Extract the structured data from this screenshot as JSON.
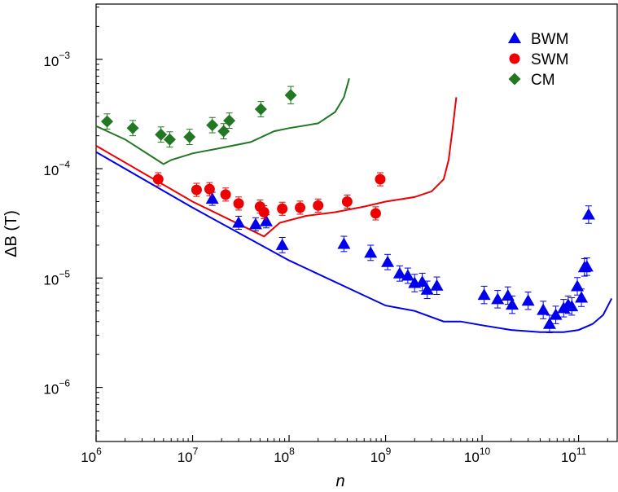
{
  "chart_data": {
    "type": "scatter",
    "xlabel": "n",
    "ylabel": "ΔB (T)",
    "xscale": "log",
    "yscale": "log",
    "xlim": [
      1000000,
      251188643150
    ],
    "ylim": [
      3.2e-07,
      0.0032
    ],
    "x_ticks": [
      {
        "value": 1000000,
        "base": "10",
        "exp": "6"
      },
      {
        "value": 10000000,
        "base": "10",
        "exp": "7"
      },
      {
        "value": 100000000,
        "base": "10",
        "exp": "8"
      },
      {
        "value": 1000000000,
        "base": "10",
        "exp": "9"
      },
      {
        "value": 10000000000,
        "base": "10",
        "exp": "10"
      },
      {
        "value": 100000000000,
        "base": "10",
        "exp": "11"
      }
    ],
    "y_ticks": [
      {
        "value": 1e-06,
        "base": "10",
        "exp": "−6"
      },
      {
        "value": 1e-05,
        "base": "10",
        "exp": "−5"
      },
      {
        "value": 0.0001,
        "base": "10",
        "exp": "−4"
      },
      {
        "value": 0.001,
        "base": "10",
        "exp": "−3"
      }
    ],
    "legend_position": "top-right",
    "grid": false,
    "series": [
      {
        "name": "BWM",
        "marker": "triangle",
        "color": "#0000ee",
        "points": [
          [
            16000000.0,
            5.3e-05,
            0.06
          ],
          [
            30000000.0,
            3.2e-05,
            0.06
          ],
          [
            45000000.0,
            3.1e-05,
            0.06
          ],
          [
            58000000.0,
            3.3e-05,
            0.06
          ],
          [
            85000000.0,
            2e-05,
            0.07
          ],
          [
            370000000.0,
            2.05e-05,
            0.07
          ],
          [
            700000000.0,
            1.7e-05,
            0.07
          ],
          [
            1050000000.0,
            1.4e-05,
            0.07
          ],
          [
            1400000000.0,
            1.1e-05,
            0.07
          ],
          [
            1700000000.0,
            1.05e-05,
            0.07
          ],
          [
            2000000000.0,
            9e-06,
            0.08
          ],
          [
            2400000000.0,
            9.2e-06,
            0.08
          ],
          [
            2700000000.0,
            7.8e-06,
            0.08
          ],
          [
            3400000000.0,
            8.5e-06,
            0.08
          ],
          [
            10500000000.0,
            7e-06,
            0.08
          ],
          [
            14500000000.0,
            6.4e-06,
            0.08
          ],
          [
            18500000000.0,
            6.9e-06,
            0.08
          ],
          [
            20500000000.0,
            5.7e-06,
            0.08
          ],
          [
            30000000000.0,
            6.2e-06,
            0.08
          ],
          [
            43000000000.0,
            5.1e-06,
            0.08
          ],
          [
            50000000000.0,
            3.8e-06,
            0.08
          ],
          [
            58000000000.0,
            4.6e-06,
            0.08
          ],
          [
            70000000000.0,
            5.3e-06,
            0.08
          ],
          [
            78000000000.0,
            5.7e-06,
            0.08
          ],
          [
            85000000000.0,
            5.5e-06,
            0.08
          ],
          [
            97000000000.0,
            8.4e-06,
            0.08
          ],
          [
            107000000000.0,
            6.6e-06,
            0.08
          ],
          [
            115000000000.0,
            1.25e-05,
            0.08
          ],
          [
            122000000000.0,
            1.27e-05,
            0.08
          ],
          [
            127000000000.0,
            3.8e-05,
            0.08
          ]
        ],
        "curve": [
          [
            1000000.0,
            0.000142
          ],
          [
            10000000.0,
            4.4e-05
          ],
          [
            100000000.0,
            1.45e-05
          ],
          [
            1000000000.0,
            5.6e-06
          ],
          [
            2000000000.0,
            5e-06
          ],
          [
            4000000000.0,
            4e-06
          ],
          [
            6000000000.0,
            4e-06
          ],
          [
            10000000000.0,
            3.7e-06
          ],
          [
            20000000000.0,
            3.35e-06
          ],
          [
            40000000000.0,
            3.2e-06
          ],
          [
            70000000000.0,
            3.2e-06
          ],
          [
            100000000000.0,
            3.35e-06
          ],
          [
            140000000000.0,
            3.8e-06
          ],
          [
            180000000000.0,
            4.6e-06
          ],
          [
            220000000000.0,
            6.5e-06
          ]
        ]
      },
      {
        "name": "SWM",
        "marker": "circle",
        "color": "#ee0000",
        "points": [
          [
            4400000.0,
            8e-05,
            0.06
          ],
          [
            11000000.0,
            6.4e-05,
            0.06
          ],
          [
            15000000.0,
            6.5e-05,
            0.06
          ],
          [
            22000000.0,
            5.8e-05,
            0.06
          ],
          [
            30000000.0,
            4.8e-05,
            0.06
          ],
          [
            50000000.0,
            4.5e-05,
            0.06
          ],
          [
            55000000.0,
            4e-05,
            0.06
          ],
          [
            85000000.0,
            4.3e-05,
            0.06
          ],
          [
            130000000.0,
            4.4e-05,
            0.06
          ],
          [
            200000000.0,
            4.6e-05,
            0.06
          ],
          [
            400000000.0,
            5e-05,
            0.06
          ],
          [
            790000000.0,
            3.9e-05,
            0.06
          ],
          [
            880000000.0,
            8e-05,
            0.06
          ]
        ],
        "curve": [
          [
            1000000.0,
            0.000162
          ],
          [
            10000000.0,
            5e-05
          ],
          [
            55000000.0,
            2.4e-05
          ],
          [
            80000000.0,
            3.2e-05
          ],
          [
            150000000.0,
            3.7e-05
          ],
          [
            300000000.0,
            4e-05
          ],
          [
            600000000.0,
            4.5e-05
          ],
          [
            1000000000.0,
            5e-05
          ],
          [
            2000000000.0,
            5.5e-05
          ],
          [
            3000000000.0,
            6.2e-05
          ],
          [
            4000000000.0,
            8e-05
          ],
          [
            4500000000.0,
            0.00012
          ],
          [
            5000000000.0,
            0.00025
          ],
          [
            5400000000.0,
            0.00045
          ]
        ]
      },
      {
        "name": "CM",
        "marker": "diamond",
        "color": "#227722",
        "points": [
          [
            1300000.0,
            0.00027,
            0.07
          ],
          [
            2400000.0,
            0.000235,
            0.07
          ],
          [
            4700000.0,
            0.000205,
            0.07
          ],
          [
            5800000.0,
            0.000185,
            0.07
          ],
          [
            9300000.0,
            0.000195,
            0.07
          ],
          [
            16000000.0,
            0.00025,
            0.07
          ],
          [
            21000000.0,
            0.00022,
            0.07
          ],
          [
            24000000.0,
            0.000275,
            0.07
          ],
          [
            51000000.0,
            0.00035,
            0.07
          ],
          [
            104000000.0,
            0.00047,
            0.08
          ]
        ],
        "curve": [
          [
            1000000.0,
            0.000245
          ],
          [
            2000000.0,
            0.000185
          ],
          [
            4000000.0,
            0.000125
          ],
          [
            5000000.0,
            0.00011
          ],
          [
            6000000.0,
            0.00012
          ],
          [
            10000000.0,
            0.000138
          ],
          [
            20000000.0,
            0.000155
          ],
          [
            40000000.0,
            0.000175
          ],
          [
            70000000.0,
            0.00022
          ],
          [
            100000000.0,
            0.000235
          ],
          [
            200000000.0,
            0.00026
          ],
          [
            300000000.0,
            0.00033
          ],
          [
            370000000.0,
            0.00045
          ],
          [
            420000000.0,
            0.00067
          ]
        ]
      }
    ]
  }
}
